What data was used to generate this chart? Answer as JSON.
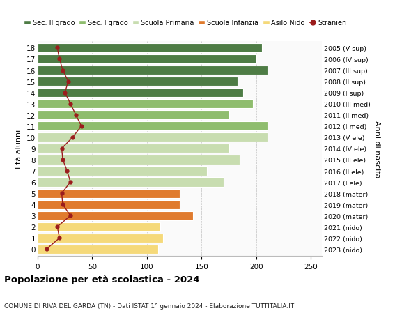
{
  "ages": [
    0,
    1,
    2,
    3,
    4,
    5,
    6,
    7,
    8,
    9,
    10,
    11,
    12,
    13,
    14,
    15,
    16,
    17,
    18
  ],
  "bar_values": [
    110,
    115,
    112,
    142,
    130,
    130,
    170,
    155,
    185,
    175,
    210,
    210,
    175,
    197,
    188,
    183,
    210,
    200,
    205
  ],
  "right_labels": [
    "2023 (nido)",
    "2022 (nido)",
    "2021 (nido)",
    "2020 (mater)",
    "2019 (mater)",
    "2018 (mater)",
    "2017 (I ele)",
    "2016 (II ele)",
    "2015 (III ele)",
    "2014 (IV ele)",
    "2013 (V ele)",
    "2012 (I med)",
    "2011 (II med)",
    "2010 (III med)",
    "2009 (I sup)",
    "2008 (II sup)",
    "2007 (III sup)",
    "2006 (IV sup)",
    "2005 (V sup)"
  ],
  "stranieri_values": [
    8,
    20,
    18,
    30,
    23,
    22,
    30,
    27,
    23,
    22,
    32,
    40,
    35,
    30,
    25,
    28,
    23,
    20,
    18
  ],
  "bar_colors": {
    "nido": "#F5D97A",
    "mater": "#E07B2E",
    "ele": "#C8DDB0",
    "med": "#8FBD6E",
    "sup": "#4E7C45"
  },
  "color_map": [
    "nido",
    "nido",
    "nido",
    "mater",
    "mater",
    "mater",
    "ele",
    "ele",
    "ele",
    "ele",
    "ele",
    "med",
    "med",
    "med",
    "sup",
    "sup",
    "sup",
    "sup",
    "sup"
  ],
  "stranieri_color": "#9B1C1C",
  "legend_labels": [
    "Sec. II grado",
    "Sec. I grado",
    "Scuola Primaria",
    "Scuola Infanzia",
    "Asilo Nido",
    "Stranieri"
  ],
  "legend_colors": [
    "#4E7C45",
    "#8FBD6E",
    "#C8DDB0",
    "#E07B2E",
    "#F5D97A",
    "#9B1C1C"
  ],
  "ylabel_left": "Età alunni",
  "ylabel_right": "Anni di nascita",
  "title": "Popolazione per età scolastica - 2024",
  "subtitle": "COMUNE DI RIVA DEL GARDA (TN) - Dati ISTAT 1° gennaio 2024 - Elaborazione TUTTITALIA.IT",
  "xlim": [
    0,
    260
  ],
  "xticks": [
    0,
    50,
    100,
    150,
    200,
    250
  ],
  "background_color": "#FFFFFF",
  "plot_bg_color": "#FAFAFA"
}
